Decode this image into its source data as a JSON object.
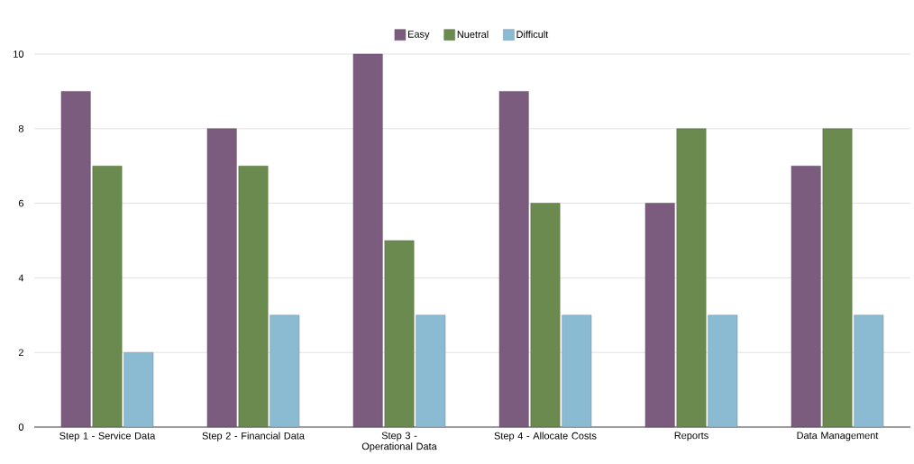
{
  "chart_data": {
    "type": "bar",
    "categories": [
      "Step 1 - Service Data",
      "Step 2 - Financial Data",
      "Step 3 - Operational Data",
      "Step 4 - Allocate Costs",
      "Reports",
      "Data Management"
    ],
    "series": [
      {
        "name": "Easy",
        "color": "#7b5c7e",
        "values": [
          9,
          8,
          10,
          9,
          6,
          7
        ]
      },
      {
        "name": "Nuetral",
        "color": "#6a8a4f",
        "values": [
          7,
          7,
          5,
          6,
          8,
          8
        ]
      },
      {
        "name": "Difficult",
        "color": "#8bbad3",
        "values": [
          2,
          3,
          3,
          3,
          3,
          3
        ]
      }
    ],
    "ylim": [
      0,
      10
    ],
    "yticks": [
      0,
      2,
      4,
      6,
      8,
      10
    ],
    "grid": "y",
    "legend": "top"
  }
}
